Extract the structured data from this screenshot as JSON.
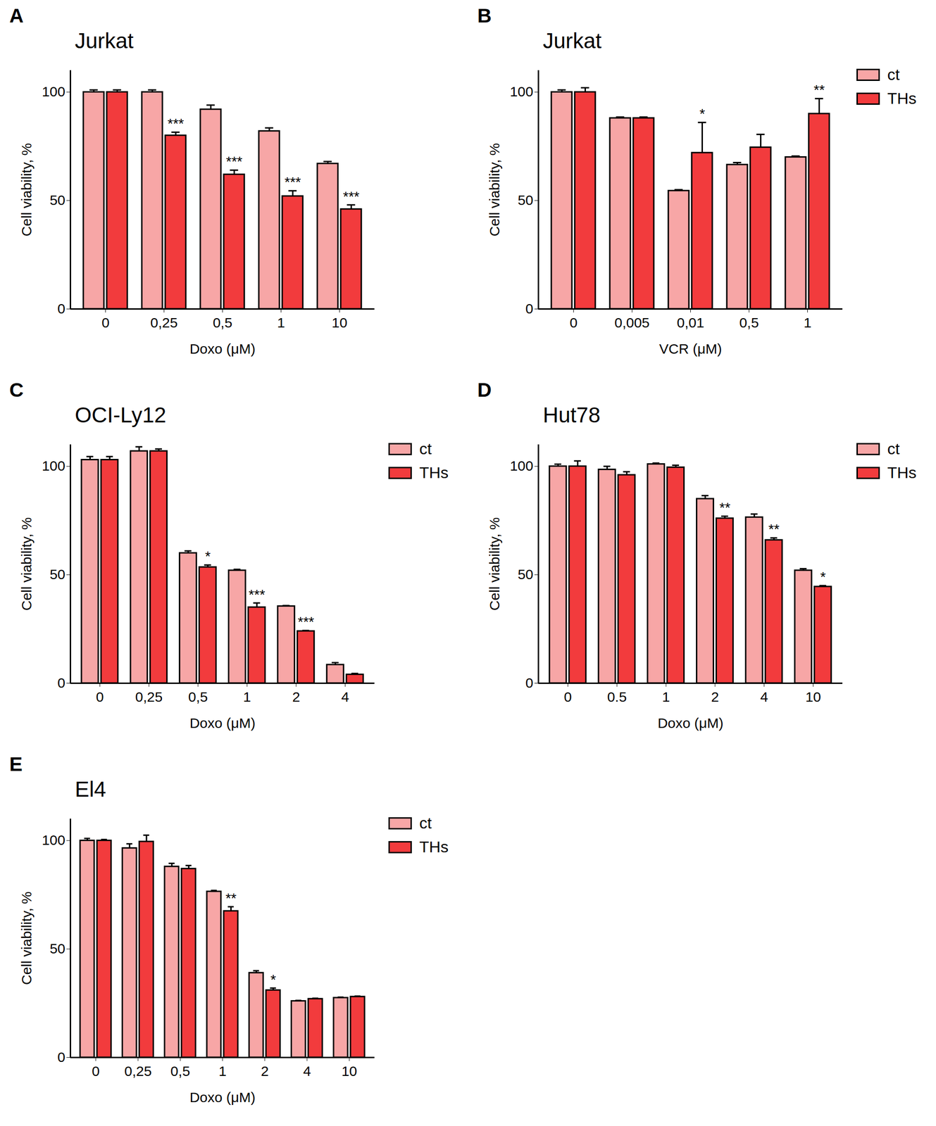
{
  "chart_data": [
    {
      "panel": "A",
      "type": "bar",
      "title": "Jurkat",
      "x_label": "Doxo (μM)",
      "y_label": "Cell viability, %",
      "categories": [
        "0",
        "0,25",
        "0,5",
        "1",
        "10"
      ],
      "series": [
        {
          "color": "#f7a6a6",
          "values": [
            100,
            100,
            92,
            82,
            67
          ],
          "errors": [
            1,
            1,
            2,
            1.5,
            1
          ]
        },
        {
          "color": "#f23b3d",
          "values": [
            100,
            80,
            62,
            52,
            46
          ],
          "errors": [
            1,
            1.5,
            2,
            2.5,
            2
          ],
          "significance": [
            null,
            "***",
            "***",
            "***",
            "***"
          ]
        }
      ],
      "ylim": [
        0,
        110
      ],
      "yticks": [
        0,
        50,
        100
      ]
    },
    {
      "panel": "B",
      "type": "bar",
      "title": "Jurkat",
      "x_label": "VCR (μM)",
      "y_label": "Cell viability, %",
      "categories": [
        "0",
        "0,005",
        "0,01",
        "0,5",
        "1"
      ],
      "series": [
        {
          "name": "ct",
          "color": "#f7a6a6",
          "values": [
            100,
            88,
            54.5,
            66.5,
            70
          ],
          "errors": [
            1,
            0.5,
            0.5,
            1,
            0.5
          ]
        },
        {
          "name": "THs",
          "color": "#f23b3d",
          "values": [
            100,
            88,
            72,
            74.5,
            90
          ],
          "errors": [
            2,
            0.5,
            14,
            6,
            7
          ],
          "significance": [
            null,
            null,
            "*",
            null,
            "**"
          ]
        }
      ],
      "ylim": [
        0,
        110
      ],
      "yticks": [
        0,
        50,
        100
      ],
      "legend": "right"
    },
    {
      "panel": "C",
      "type": "bar",
      "title": "OCI-Ly12",
      "x_label": "Doxo (μM)",
      "y_label": "Cell viability, %",
      "categories": [
        "0",
        "0,25",
        "0,5",
        "1",
        "2",
        "4"
      ],
      "series": [
        {
          "name": "ct",
          "color": "#f7a6a6",
          "values": [
            103,
            107,
            60,
            52,
            35.5,
            8.5
          ],
          "errors": [
            1.5,
            2,
            1,
            0.5,
            0.3,
            1
          ]
        },
        {
          "name": "THs",
          "color": "#f23b3d",
          "values": [
            103,
            107,
            53.5,
            35,
            24,
            4
          ],
          "errors": [
            1.5,
            1,
            1,
            2,
            0.3,
            0.5
          ],
          "significance": [
            null,
            null,
            "*",
            "***",
            "***",
            null
          ]
        }
      ],
      "ylim": [
        0,
        110
      ],
      "yticks": [
        0,
        50,
        100
      ],
      "legend": "right"
    },
    {
      "panel": "D",
      "type": "bar",
      "title": "Hut78",
      "x_label": "Doxo (μM)",
      "y_label": "Cell viability, %",
      "categories": [
        "0",
        "0.5",
        "1",
        "2",
        "4",
        "10"
      ],
      "series": [
        {
          "name": "ct",
          "color": "#f7a6a6",
          "values": [
            100,
            98.5,
            101,
            85,
            76.5,
            52
          ],
          "errors": [
            1,
            1.5,
            0.5,
            1.5,
            1.5,
            0.8
          ]
        },
        {
          "name": "THs",
          "color": "#f23b3d",
          "values": [
            100,
            96,
            99.5,
            76,
            66,
            44.5
          ],
          "errors": [
            2.5,
            1.5,
            1,
            1,
            1,
            0.5
          ],
          "significance": [
            null,
            null,
            null,
            "**",
            "**",
            "*"
          ]
        }
      ],
      "ylim": [
        0,
        110
      ],
      "yticks": [
        0,
        50,
        100
      ],
      "legend": "right"
    },
    {
      "panel": "E",
      "type": "bar",
      "title": "El4",
      "x_label": "Doxo (μM)",
      "y_label": "Cell viability, %",
      "categories": [
        "0",
        "0,25",
        "0,5",
        "1",
        "2",
        "4",
        "10"
      ],
      "series": [
        {
          "name": "ct",
          "color": "#f7a6a6",
          "values": [
            100,
            96.5,
            88,
            76.5,
            39,
            26,
            27.5
          ],
          "errors": [
            1,
            2,
            1.5,
            0.5,
            1,
            0.3,
            0.3
          ]
        },
        {
          "name": "THs",
          "color": "#f23b3d",
          "values": [
            100,
            99.5,
            87,
            67.5,
            31,
            27,
            28
          ],
          "errors": [
            0.5,
            3,
            1.5,
            2,
            1,
            0.3,
            0.3
          ],
          "significance": [
            null,
            null,
            null,
            "**",
            "*",
            null,
            null
          ]
        }
      ],
      "ylim": [
        0,
        110
      ],
      "yticks": [
        0,
        50,
        100
      ],
      "legend": "right"
    }
  ]
}
